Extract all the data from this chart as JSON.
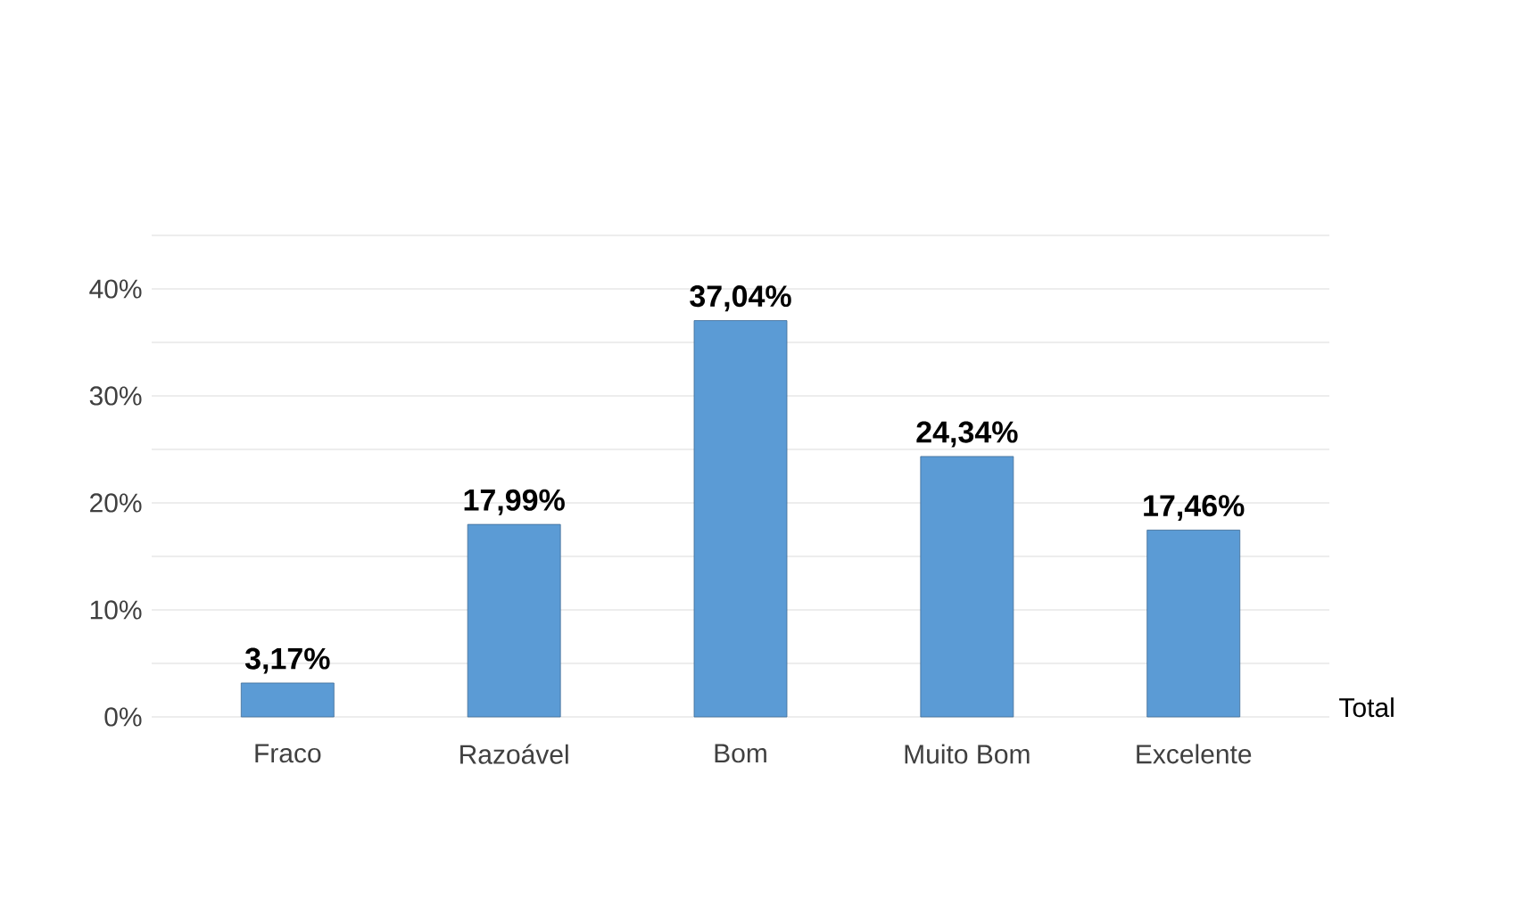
{
  "chart_data": {
    "type": "bar",
    "categories": [
      "Fraco",
      "Razoável",
      "Bom",
      "Muito Bom",
      "Excelente"
    ],
    "series": [
      {
        "name": "Total",
        "color": "#5b9bd5",
        "values": [
          3.17,
          17.99,
          37.04,
          24.34,
          17.46
        ],
        "value_labels": [
          "3,17%",
          "17,99%",
          "37,04%",
          "24,34%",
          "17,46%"
        ]
      }
    ],
    "ylim": [
      0,
      45
    ],
    "yticks": [
      {
        "value": 0,
        "label": "0%"
      },
      {
        "value": 5,
        "label": null
      },
      {
        "value": 10,
        "label": "10%"
      },
      {
        "value": 15,
        "label": null
      },
      {
        "value": 20,
        "label": "20%"
      },
      {
        "value": 25,
        "label": null
      },
      {
        "value": 30,
        "label": "30%"
      },
      {
        "value": 35,
        "label": null
      },
      {
        "value": 40,
        "label": "40%"
      },
      {
        "value": 45,
        "label": null
      }
    ],
    "grid": true
  }
}
